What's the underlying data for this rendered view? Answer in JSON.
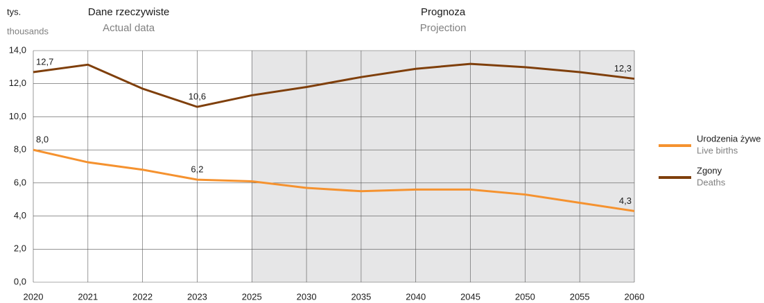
{
  "chart_data": {
    "type": "line",
    "y_label": "tys.",
    "y_label_en": "thousands",
    "annotations": [
      {
        "text": "Dane rzeczywiste",
        "text_en": "Actual data"
      },
      {
        "text": "Prognoza",
        "text_en": "Projection",
        "shaded_from": "2025",
        "shaded_to": "2060",
        "shade_color": "#e6e6e7"
      }
    ],
    "categories": [
      "2020",
      "2021",
      "2022",
      "2023",
      "2025",
      "2030",
      "2035",
      "2040",
      "2045",
      "2050",
      "2055",
      "2060"
    ],
    "series": [
      {
        "name": "Urodzenia żywe",
        "name_en": "Live births",
        "color": "#f5922f",
        "values": [
          8.0,
          7.25,
          6.8,
          6.2,
          6.1,
          5.7,
          5.5,
          5.6,
          5.6,
          5.3,
          4.8,
          4.3
        ],
        "value_labels": [
          "8,0",
          null,
          null,
          "6,2",
          null,
          null,
          null,
          null,
          null,
          null,
          null,
          "4,3"
        ]
      },
      {
        "name": "Zgony",
        "name_en": "Deaths",
        "color": "#7f3f0b",
        "values": [
          12.7,
          13.15,
          11.7,
          10.6,
          11.3,
          11.8,
          12.4,
          12.9,
          13.2,
          13.0,
          12.7,
          12.3
        ],
        "value_labels": [
          "12,7",
          null,
          null,
          "10,6",
          null,
          null,
          null,
          null,
          null,
          null,
          null,
          "12,3"
        ]
      }
    ],
    "ylim": [
      0,
      14
    ],
    "yticks": [
      {
        "value": 0,
        "label": "0,0"
      },
      {
        "value": 2,
        "label": "2,0"
      },
      {
        "value": 4,
        "label": "4,0"
      },
      {
        "value": 6,
        "label": "6,0"
      },
      {
        "value": 8,
        "label": "8,0"
      },
      {
        "value": 10,
        "label": "10,0"
      },
      {
        "value": 12,
        "label": "12,0"
      },
      {
        "value": 14,
        "label": "14,0"
      }
    ],
    "grid": true,
    "legend": "right"
  }
}
